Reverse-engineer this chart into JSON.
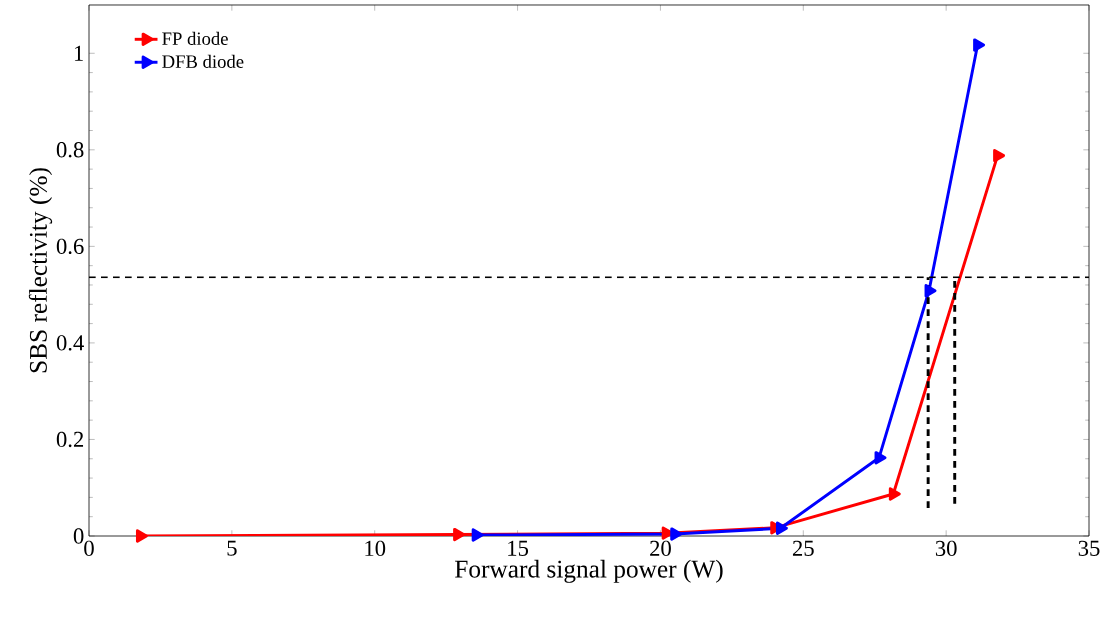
{
  "chart_data": {
    "type": "line",
    "xlabel": "Forward signal power (W)",
    "ylabel": "SBS reflectivity (%)",
    "xlim": [
      0,
      35
    ],
    "ylim": [
      0,
      1.1
    ],
    "xticks": [
      0,
      5,
      10,
      15,
      20,
      25,
      30,
      35
    ],
    "yticks": [
      0,
      0.2,
      0.4,
      0.6,
      0.8,
      1
    ],
    "marker": "triangle",
    "line_style": "solid",
    "legend": "top left",
    "grid": false,
    "series": [
      {
        "name": "FP diode",
        "color": "#ff0000",
        "x": [
          1.8,
          12.9,
          20.2,
          24.0,
          28.15,
          31.8
        ],
        "values": [
          0.0,
          0.003,
          0.006,
          0.017,
          0.087,
          0.788
        ]
      },
      {
        "name": "DFB diode",
        "color": "#0000ff",
        "x": [
          13.55,
          20.5,
          24.2,
          27.65,
          29.4,
          31.1
        ],
        "values": [
          0.002,
          0.004,
          0.016,
          0.162,
          0.508,
          1.017
        ]
      },
      {
        "type": "line",
        "color": "#000000",
        "marker": "none",
        "line_style": "dashed",
        "x": [
          29.37,
          29.37
        ],
        "values": [
          0.058,
          0.536
        ]
      },
      {
        "type": "line",
        "color": "#000000",
        "marker": "none",
        "line_style": "dashed",
        "x": [
          30.3,
          30.3
        ],
        "values": [
          0.067,
          0.536
        ]
      }
    ],
    "ref_lines": [
      {
        "axis": "y",
        "value": 0.536,
        "color": "#000000",
        "line_style": "dashed"
      }
    ]
  }
}
